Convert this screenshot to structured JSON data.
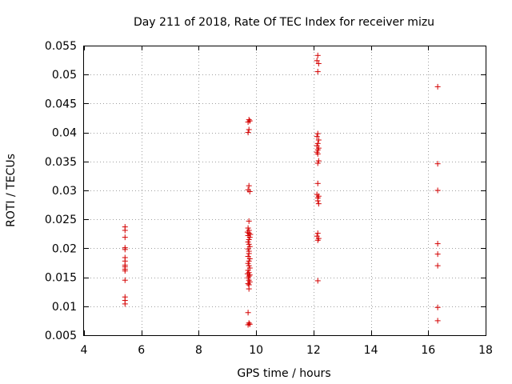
{
  "chart_data": {
    "type": "scatter",
    "title": "Day 211 of 2018, Rate Of TEC Index for receiver mizu",
    "xlabel": "GPS time / hours",
    "ylabel": "ROTI / TECUs",
    "xlim": [
      4,
      18
    ],
    "ylim": [
      0.005,
      0.055
    ],
    "grid": true,
    "marker": "plus",
    "color": "#d40000",
    "x_ticks": [
      4,
      6,
      8,
      10,
      12,
      14,
      16,
      18
    ],
    "x_tick_labels": [
      "4",
      "6",
      "8",
      "10",
      "12",
      "14",
      "16",
      "18"
    ],
    "y_ticks": [
      0.005,
      0.01,
      0.015,
      0.02,
      0.025,
      0.03,
      0.035,
      0.04,
      0.045,
      0.05,
      0.055
    ],
    "y_tick_labels": [
      "0.005",
      "0.01",
      "0.015",
      "0.02",
      "0.025",
      "0.03",
      "0.035",
      "0.04",
      "0.045",
      "0.05",
      "0.055"
    ],
    "series": [
      {
        "name": "ROTI",
        "points": [
          [
            5.43,
            0.0237
          ],
          [
            5.43,
            0.0231
          ],
          [
            5.43,
            0.0219
          ],
          [
            5.43,
            0.0201
          ],
          [
            5.43,
            0.0198
          ],
          [
            5.43,
            0.0184
          ],
          [
            5.43,
            0.0178
          ],
          [
            5.43,
            0.0171
          ],
          [
            5.43,
            0.0168
          ],
          [
            5.43,
            0.0164
          ],
          [
            5.43,
            0.0161
          ],
          [
            5.43,
            0.0145
          ],
          [
            5.43,
            0.0116
          ],
          [
            5.43,
            0.011
          ],
          [
            5.43,
            0.0104
          ],
          [
            9.75,
            0.0422
          ],
          [
            9.78,
            0.042
          ],
          [
            9.72,
            0.0418
          ],
          [
            9.75,
            0.0405
          ],
          [
            9.72,
            0.04
          ],
          [
            9.75,
            0.0308
          ],
          [
            9.72,
            0.0301
          ],
          [
            9.78,
            0.0298
          ],
          [
            9.75,
            0.0247
          ],
          [
            9.72,
            0.0235
          ],
          [
            9.75,
            0.0231
          ],
          [
            9.7,
            0.0228
          ],
          [
            9.75,
            0.0226
          ],
          [
            9.8,
            0.0224
          ],
          [
            9.72,
            0.0222
          ],
          [
            9.78,
            0.0219
          ],
          [
            9.75,
            0.0215
          ],
          [
            9.72,
            0.0211
          ],
          [
            9.75,
            0.0207
          ],
          [
            9.78,
            0.0203
          ],
          [
            9.72,
            0.0199
          ],
          [
            9.75,
            0.0195
          ],
          [
            9.75,
            0.0191
          ],
          [
            9.72,
            0.0186
          ],
          [
            9.78,
            0.0182
          ],
          [
            9.75,
            0.0178
          ],
          [
            9.72,
            0.0174
          ],
          [
            9.75,
            0.017
          ],
          [
            9.78,
            0.0166
          ],
          [
            9.72,
            0.0162
          ],
          [
            9.75,
            0.0158
          ],
          [
            9.7,
            0.0156
          ],
          [
            9.78,
            0.0154
          ],
          [
            9.75,
            0.0152
          ],
          [
            9.72,
            0.0149
          ],
          [
            9.75,
            0.0145
          ],
          [
            9.78,
            0.0142
          ],
          [
            9.72,
            0.0139
          ],
          [
            9.75,
            0.0137
          ],
          [
            9.75,
            0.013
          ],
          [
            9.72,
            0.0089
          ],
          [
            9.75,
            0.0071
          ],
          [
            9.78,
            0.0069
          ],
          [
            9.72,
            0.0068
          ],
          [
            12.15,
            0.0533
          ],
          [
            12.12,
            0.0524
          ],
          [
            12.18,
            0.0519
          ],
          [
            12.15,
            0.0505
          ],
          [
            12.15,
            0.0398
          ],
          [
            12.12,
            0.0393
          ],
          [
            12.18,
            0.0387
          ],
          [
            12.15,
            0.0381
          ],
          [
            12.12,
            0.0377
          ],
          [
            12.18,
            0.0373
          ],
          [
            12.15,
            0.037
          ],
          [
            12.12,
            0.0366
          ],
          [
            12.15,
            0.0363
          ],
          [
            12.18,
            0.0351
          ],
          [
            12.15,
            0.0347
          ],
          [
            12.15,
            0.0312
          ],
          [
            12.12,
            0.0293
          ],
          [
            12.18,
            0.029
          ],
          [
            12.15,
            0.0287
          ],
          [
            12.15,
            0.0282
          ],
          [
            12.18,
            0.0277
          ],
          [
            12.15,
            0.0226
          ],
          [
            12.12,
            0.0221
          ],
          [
            12.18,
            0.0217
          ],
          [
            12.15,
            0.0214
          ],
          [
            12.15,
            0.0144
          ],
          [
            16.33,
            0.0479
          ],
          [
            16.33,
            0.0346
          ],
          [
            16.33,
            0.03
          ],
          [
            16.33,
            0.0208
          ],
          [
            16.33,
            0.019
          ],
          [
            16.33,
            0.017
          ],
          [
            16.33,
            0.0098
          ],
          [
            16.33,
            0.0075
          ]
        ]
      }
    ]
  }
}
